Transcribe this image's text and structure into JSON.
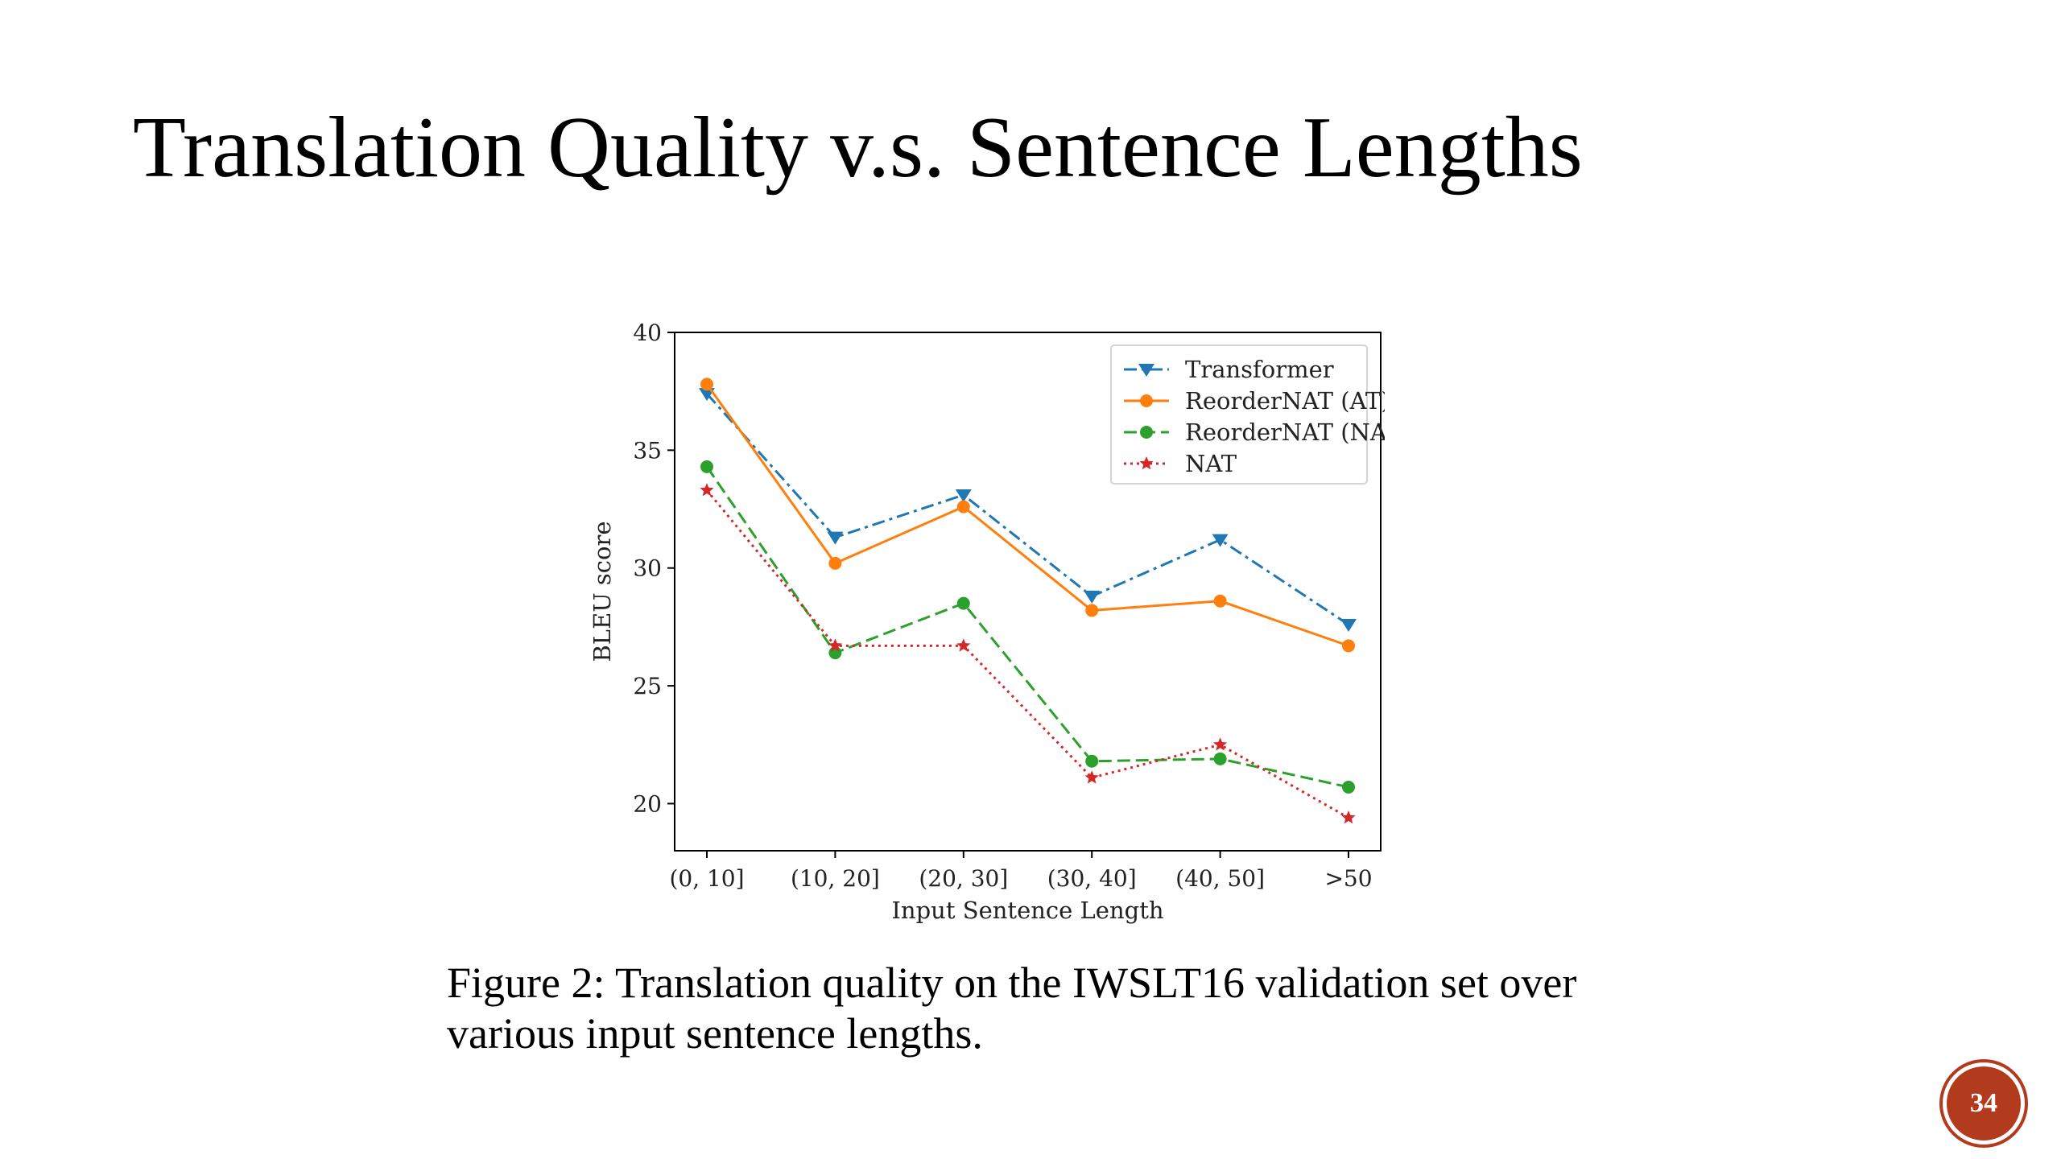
{
  "slide": {
    "title": "Translation Quality v.s. Sentence Lengths",
    "caption": "Figure 2: Translation quality on the IWSLT16 validation set over various input sentence lengths.",
    "page_number": "34",
    "badge_color": "#b23b1e"
  },
  "chart_data": {
    "type": "line",
    "categories": [
      "(0, 10]",
      "(10, 20]",
      "(20, 30]",
      "(30, 40]",
      "(40, 50]",
      ">50"
    ],
    "xlabel": "Input Sentence Length",
    "ylabel": "BLEU score",
    "ylim": [
      18,
      40
    ],
    "yticks": [
      20,
      25,
      30,
      35,
      40
    ],
    "legend_position": "top-right",
    "grid": false,
    "series": [
      {
        "name": "Transformer",
        "values": [
          37.4,
          31.3,
          33.1,
          28.8,
          31.2,
          27.6
        ],
        "color": "#1f77b4",
        "marker": "triangle-down",
        "line_style": "dash-dot"
      },
      {
        "name": "ReorderNAT (AT)",
        "values": [
          37.8,
          30.2,
          32.6,
          28.2,
          28.6,
          26.7
        ],
        "color": "#ff7f0e",
        "marker": "circle",
        "line_style": "solid"
      },
      {
        "name": "ReorderNAT (NAT)",
        "values": [
          34.3,
          26.4,
          28.5,
          21.8,
          21.9,
          20.7
        ],
        "color": "#2ca02c",
        "marker": "circle",
        "line_style": "dashed"
      },
      {
        "name": "NAT",
        "values": [
          33.3,
          26.7,
          26.7,
          21.1,
          22.5,
          19.4
        ],
        "color": "#d62728",
        "marker": "star",
        "line_style": "dotted"
      }
    ]
  }
}
